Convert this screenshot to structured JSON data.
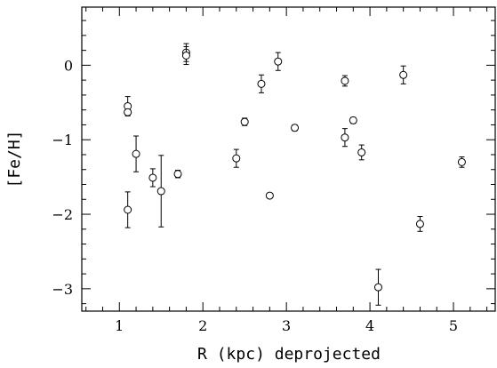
{
  "chart_data": {
    "type": "scatter",
    "xlabel": "R (kpc) deprojected",
    "ylabel": "[Fe/H]",
    "xlim": [
      0.55,
      5.5
    ],
    "ylim": [
      -3.3,
      0.78
    ],
    "xticks_major": [
      1,
      2,
      3,
      4,
      5
    ],
    "xticks_minor_step": 0.2,
    "yticks_major": [
      -3,
      -2,
      -1,
      0
    ],
    "yticks_minor_step": 0.2,
    "grid": false,
    "legend": "none",
    "marker": "open-circle",
    "points": [
      {
        "x": 1.1,
        "y": -0.55,
        "yerr": 0.13
      },
      {
        "x": 1.1,
        "y": -0.63,
        "yerr": 0.03
      },
      {
        "x": 1.1,
        "y": -1.94,
        "yerr": 0.24
      },
      {
        "x": 1.2,
        "y": -1.19,
        "yerr": 0.24
      },
      {
        "x": 1.4,
        "y": -1.51,
        "yerr": 0.12
      },
      {
        "x": 1.5,
        "y": -1.69,
        "yerr": 0.48
      },
      {
        "x": 1.7,
        "y": -1.46,
        "yerr": 0.05
      },
      {
        "x": 1.8,
        "y": 0.17,
        "yerr": 0.12
      },
      {
        "x": 1.8,
        "y": 0.13,
        "yerr": 0.12
      },
      {
        "x": 2.4,
        "y": -1.25,
        "yerr": 0.12
      },
      {
        "x": 2.5,
        "y": -0.76,
        "yerr": 0.05
      },
      {
        "x": 2.7,
        "y": -0.25,
        "yerr": 0.12
      },
      {
        "x": 2.8,
        "y": -1.75,
        "yerr": 0.03
      },
      {
        "x": 2.9,
        "y": 0.05,
        "yerr": 0.12
      },
      {
        "x": 3.1,
        "y": -0.84,
        "yerr": 0.04
      },
      {
        "x": 3.7,
        "y": -0.21,
        "yerr": 0.07
      },
      {
        "x": 3.7,
        "y": -0.97,
        "yerr": 0.12
      },
      {
        "x": 3.8,
        "y": -0.74,
        "yerr": 0.04
      },
      {
        "x": 3.9,
        "y": -1.17,
        "yerr": 0.1
      },
      {
        "x": 4.1,
        "y": -2.98,
        "yerr": 0.24
      },
      {
        "x": 4.4,
        "y": -0.13,
        "yerr": 0.12
      },
      {
        "x": 4.6,
        "y": -2.13,
        "yerr": 0.1
      },
      {
        "x": 5.1,
        "y": -1.3,
        "yerr": 0.07
      }
    ]
  }
}
